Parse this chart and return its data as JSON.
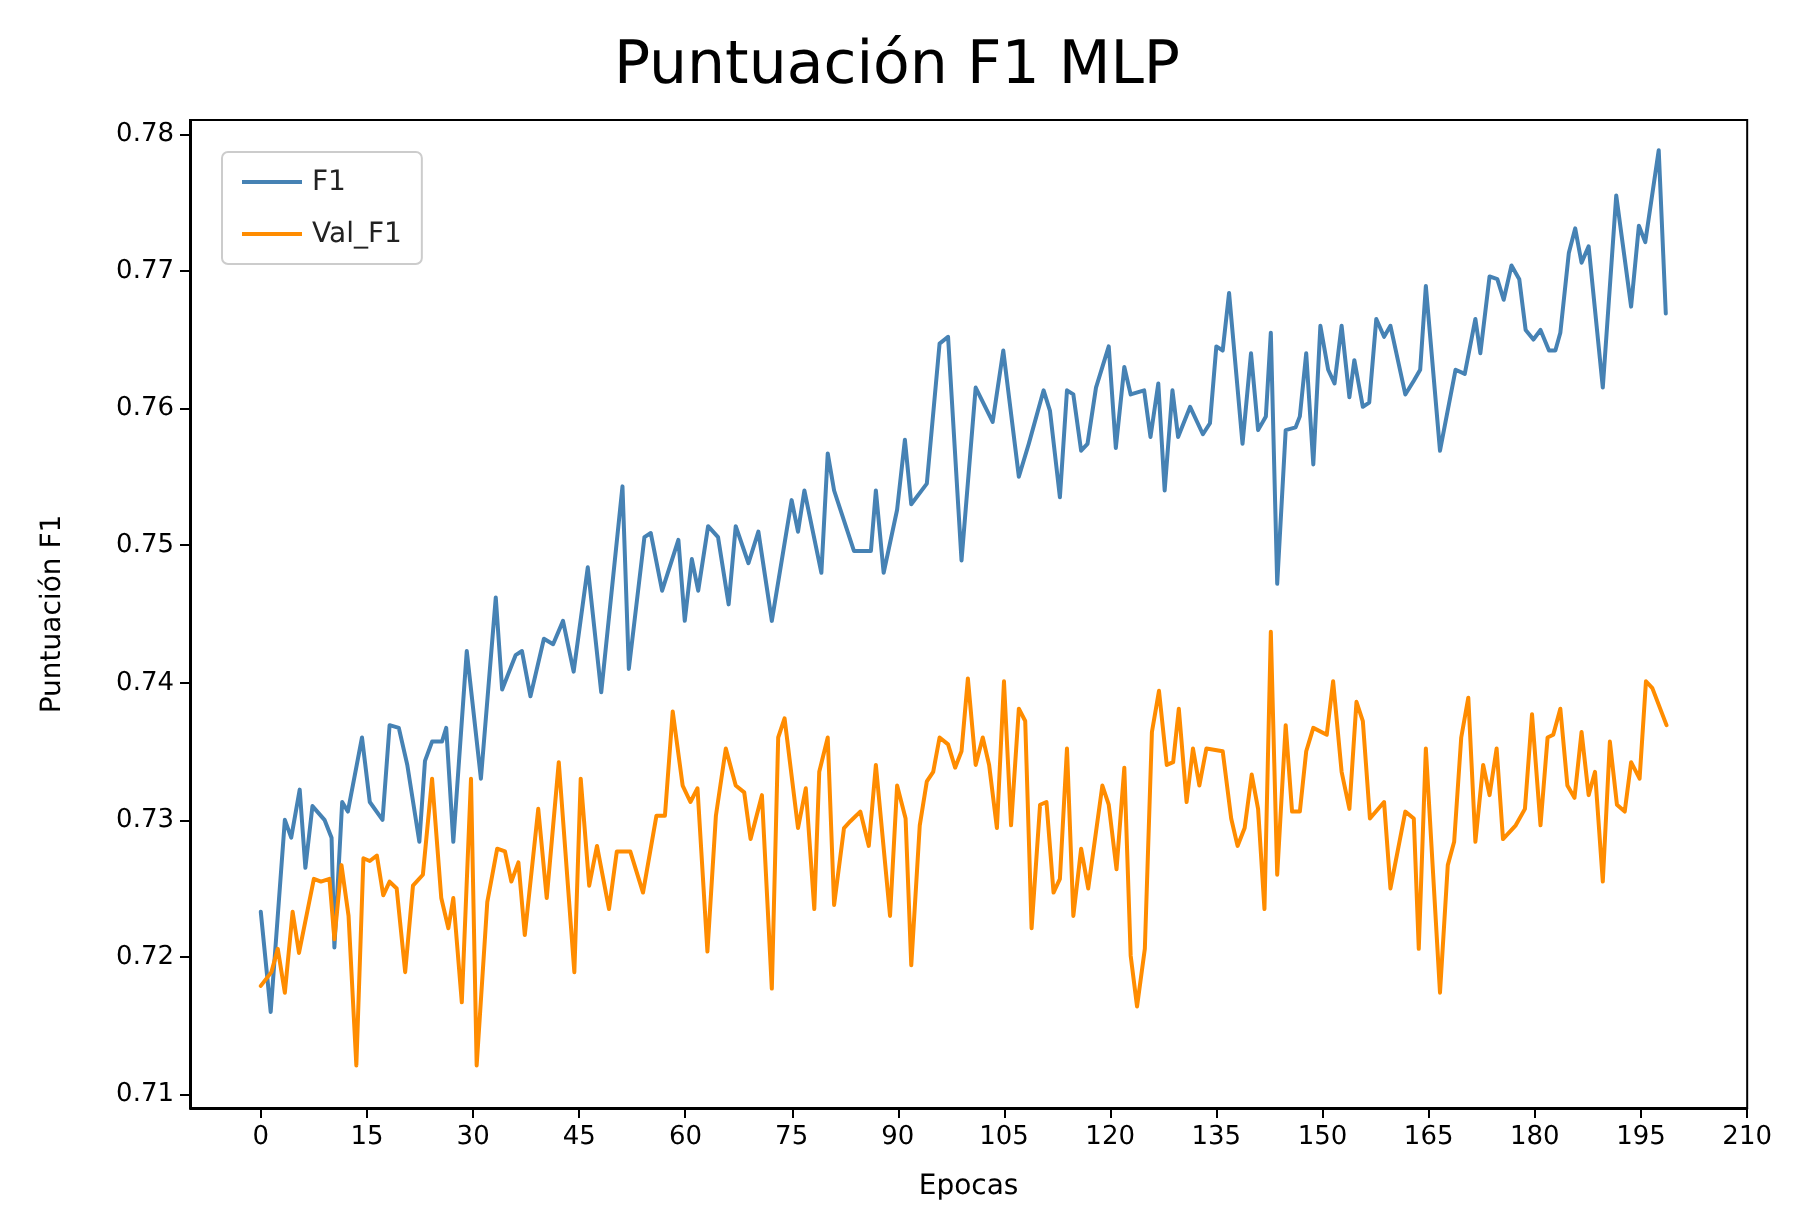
{
  "chart_data": {
    "type": "line",
    "title": "Puntuación F1 MLP",
    "xlabel": "Epocas",
    "ylabel": "Puntuación F1",
    "xlim": [
      -10,
      210
    ],
    "xticks": [
      0,
      15,
      30,
      45,
      60,
      75,
      90,
      105,
      120,
      135,
      150,
      165,
      180,
      195,
      210
    ],
    "ylim": [
      0.709,
      0.781
    ],
    "yticks": [
      0.71,
      0.72,
      0.73,
      0.74,
      0.75,
      0.76,
      0.77,
      0.78
    ],
    "grid": false,
    "legend": "top left",
    "marker": "none",
    "line_style": "solid",
    "series": [
      {
        "name": "F1",
        "color": "#4682b4",
        "x": [
          0,
          1.4,
          3.4,
          4.3,
          5.5,
          6.3,
          7.3,
          9.0,
          10.0,
          10.4,
          11.5,
          12.3,
          14.3,
          15.4,
          17.2,
          18.2,
          19.5,
          20.7,
          22.4,
          23.2,
          24.2,
          25.6,
          26.2,
          27.2,
          29.1,
          31.1,
          33.2,
          34.1,
          36.0,
          36.9,
          38.1,
          40.0,
          41.3,
          42.7,
          44.2,
          46.2,
          48.1,
          51.1,
          52.0,
          54.2,
          55.1,
          56.7,
          59.0,
          59.9,
          60.9,
          61.8,
          63.2,
          64.6,
          66.1,
          67.1,
          68.9,
          70.3,
          72.2,
          75.0,
          75.9,
          76.8,
          79.2,
          80.1,
          81.0,
          83.8,
          86.2,
          86.9,
          88.0,
          89.9,
          91.0,
          91.9,
          94.1,
          95.9,
          97.1,
          99.0,
          101.0,
          103.4,
          104.9,
          107.1,
          108.5,
          110.6,
          111.5,
          112.9,
          113.9,
          114.8,
          115.9,
          116.8,
          118.0,
          119.8,
          120.8,
          122.0,
          122.9,
          124.8,
          125.7,
          126.8,
          127.7,
          128.8,
          129.6,
          131.3,
          133.1,
          134.1,
          135.0,
          135.9,
          136.8,
          138.7,
          139.9,
          140.9,
          142.0,
          142.7,
          143.6,
          144.8,
          146.2,
          146.8,
          147.7,
          148.7,
          149.7,
          150.8,
          151.7,
          152.7,
          153.8,
          154.5,
          155.7,
          156.6,
          157.6,
          158.7,
          159.6,
          161.7,
          162.9,
          163.8,
          164.6,
          166.6,
          168.8,
          170.1,
          171.6,
          172.3,
          173.6,
          174.7,
          175.6,
          176.7,
          177.8,
          178.7,
          179.8,
          180.8,
          182.0,
          182.9,
          183.6,
          184.8,
          185.7,
          186.6,
          187.6,
          189.6,
          191.5,
          193.6,
          194.7,
          195.6,
          197.5,
          198.5
        ],
        "values": [
          0.7233,
          0.716,
          0.73,
          0.7287,
          0.7322,
          0.7265,
          0.731,
          0.73,
          0.7287,
          0.7207,
          0.7313,
          0.7306,
          0.736,
          0.7313,
          0.73,
          0.7369,
          0.7367,
          0.734,
          0.7284,
          0.7343,
          0.7357,
          0.7357,
          0.7367,
          0.7284,
          0.7423,
          0.733,
          0.7462,
          0.7395,
          0.742,
          0.7423,
          0.739,
          0.7432,
          0.7428,
          0.7445,
          0.7408,
          0.7484,
          0.7393,
          0.7543,
          0.741,
          0.7506,
          0.7509,
          0.7467,
          0.7504,
          0.7445,
          0.749,
          0.7467,
          0.7514,
          0.7506,
          0.7457,
          0.7514,
          0.7487,
          0.751,
          0.7445,
          0.7533,
          0.751,
          0.754,
          0.748,
          0.7567,
          0.754,
          0.7496,
          0.7496,
          0.754,
          0.748,
          0.7526,
          0.7577,
          0.753,
          0.7545,
          0.7647,
          0.7652,
          0.7489,
          0.7615,
          0.759,
          0.7642,
          0.755,
          0.7574,
          0.7613,
          0.7598,
          0.7535,
          0.7613,
          0.761,
          0.7569,
          0.7574,
          0.7615,
          0.7645,
          0.7571,
          0.763,
          0.761,
          0.7613,
          0.7579,
          0.7618,
          0.754,
          0.7613,
          0.7579,
          0.7601,
          0.7581,
          0.7589,
          0.7645,
          0.7642,
          0.7684,
          0.7574,
          0.764,
          0.7584,
          0.7594,
          0.7655,
          0.7472,
          0.7584,
          0.7586,
          0.7594,
          0.764,
          0.7559,
          0.766,
          0.7628,
          0.7618,
          0.766,
          0.7608,
          0.7635,
          0.7601,
          0.7604,
          0.7665,
          0.7652,
          0.766,
          0.761,
          0.762,
          0.7628,
          0.7689,
          0.7569,
          0.7628,
          0.7625,
          0.7665,
          0.764,
          0.7696,
          0.7694,
          0.7679,
          0.7704,
          0.7694,
          0.7657,
          0.765,
          0.7657,
          0.7642,
          0.7642,
          0.7655,
          0.7713,
          0.7731,
          0.7706,
          0.7718,
          0.7615,
          0.7755,
          0.7674,
          0.7733,
          0.7721,
          0.7788,
          0.7669
        ]
      },
      {
        "name": "Val_F1",
        "color": "#ff8c00",
        "x": [
          0,
          1.5,
          2.4,
          3.4,
          4.5,
          5.4,
          7.5,
          8.5,
          9.7,
          10.4,
          11.4,
          12.4,
          13.5,
          14.5,
          15.4,
          16.4,
          17.3,
          18.2,
          19.2,
          20.4,
          21.5,
          22.9,
          24.2,
          25.5,
          26.5,
          27.2,
          28.4,
          29.7,
          30.5,
          32.0,
          33.4,
          34.5,
          35.4,
          36.4,
          37.3,
          39.2,
          40.4,
          42.1,
          44.3,
          45.2,
          46.4,
          47.5,
          49.2,
          50.3,
          52.2,
          54.0,
          55.9,
          57.1,
          58.2,
          59.6,
          60.7,
          61.7,
          63.1,
          64.3,
          65.7,
          67.1,
          68.3,
          69.2,
          70.8,
          72.2,
          73.1,
          74.0,
          75.9,
          77.0,
          78.2,
          78.9,
          80.1,
          81.0,
          82.4,
          83.3,
          84.7,
          85.9,
          86.9,
          88.9,
          89.9,
          91.1,
          91.9,
          93.1,
          94.1,
          95.0,
          95.9,
          97.1,
          98.1,
          99.0,
          99.9,
          101.0,
          102.0,
          102.9,
          104.0,
          105.0,
          106.0,
          107.1,
          108.0,
          108.9,
          110.1,
          111.0,
          112.0,
          112.9,
          113.9,
          114.8,
          115.9,
          116.9,
          118.9,
          119.8,
          120.9,
          122.0,
          122.9,
          123.8,
          124.9,
          125.9,
          126.9,
          128.0,
          128.9,
          129.7,
          130.8,
          131.7,
          132.6,
          133.6,
          135.9,
          137.1,
          138.0,
          139.0,
          140.0,
          140.9,
          141.8,
          142.7,
          143.6,
          144.8,
          145.7,
          146.8,
          147.7,
          148.7,
          150.6,
          151.5,
          152.7,
          153.8,
          154.8,
          155.7,
          156.7,
          158.7,
          159.6,
          161.7,
          162.9,
          163.6,
          164.6,
          166.6,
          167.7,
          168.6,
          169.6,
          170.6,
          171.6,
          172.7,
          173.6,
          174.6,
          175.5,
          177.3,
          178.6,
          179.6,
          180.8,
          181.8,
          182.6,
          183.6,
          184.6,
          185.6,
          186.6,
          187.6,
          188.5,
          189.6,
          190.6,
          191.6,
          192.7,
          193.6,
          194.8,
          195.7,
          196.6,
          198.6
        ],
        "values": [
          0.7179,
          0.7189,
          0.7206,
          0.7174,
          0.7233,
          0.7203,
          0.7257,
          0.7255,
          0.7257,
          0.7213,
          0.7267,
          0.723,
          0.7121,
          0.7272,
          0.727,
          0.7274,
          0.7245,
          0.7255,
          0.725,
          0.7189,
          0.7252,
          0.726,
          0.733,
          0.7243,
          0.7221,
          0.7243,
          0.7167,
          0.733,
          0.7121,
          0.724,
          0.7279,
          0.7277,
          0.7255,
          0.7269,
          0.7216,
          0.7308,
          0.7243,
          0.7342,
          0.7189,
          0.733,
          0.7252,
          0.7281,
          0.7235,
          0.7277,
          0.7277,
          0.7247,
          0.7303,
          0.7303,
          0.7379,
          0.7325,
          0.7313,
          0.7323,
          0.7204,
          0.7303,
          0.7352,
          0.7325,
          0.732,
          0.7286,
          0.7318,
          0.7177,
          0.736,
          0.7374,
          0.7294,
          0.7323,
          0.7235,
          0.7335,
          0.736,
          0.7238,
          0.7294,
          0.7299,
          0.7306,
          0.7281,
          0.734,
          0.723,
          0.7325,
          0.7301,
          0.7194,
          0.7296,
          0.7328,
          0.7335,
          0.736,
          0.7355,
          0.7338,
          0.735,
          0.7403,
          0.734,
          0.736,
          0.734,
          0.7294,
          0.7401,
          0.7296,
          0.7381,
          0.7372,
          0.7221,
          0.7311,
          0.7313,
          0.7247,
          0.7257,
          0.7352,
          0.723,
          0.7279,
          0.725,
          0.7325,
          0.7311,
          0.7264,
          0.7338,
          0.7201,
          0.7164,
          0.7206,
          0.7364,
          0.7394,
          0.734,
          0.7342,
          0.7381,
          0.7313,
          0.7352,
          0.7325,
          0.7352,
          0.735,
          0.7301,
          0.7281,
          0.7294,
          0.7333,
          0.7308,
          0.7235,
          0.7437,
          0.726,
          0.7369,
          0.7306,
          0.7306,
          0.735,
          0.7367,
          0.7362,
          0.7401,
          0.7335,
          0.7308,
          0.7386,
          0.7372,
          0.7301,
          0.7313,
          0.725,
          0.7306,
          0.7301,
          0.7206,
          0.7352,
          0.7174,
          0.7267,
          0.7284,
          0.736,
          0.7389,
          0.7284,
          0.734,
          0.7318,
          0.7352,
          0.7286,
          0.7296,
          0.7308,
          0.7377,
          0.7296,
          0.736,
          0.7362,
          0.7381,
          0.7325,
          0.7316,
          0.7364,
          0.7318,
          0.7335,
          0.7255,
          0.7357,
          0.7311,
          0.7306,
          0.7342,
          0.733,
          0.7401,
          0.7396,
          0.7369
        ]
      }
    ]
  }
}
